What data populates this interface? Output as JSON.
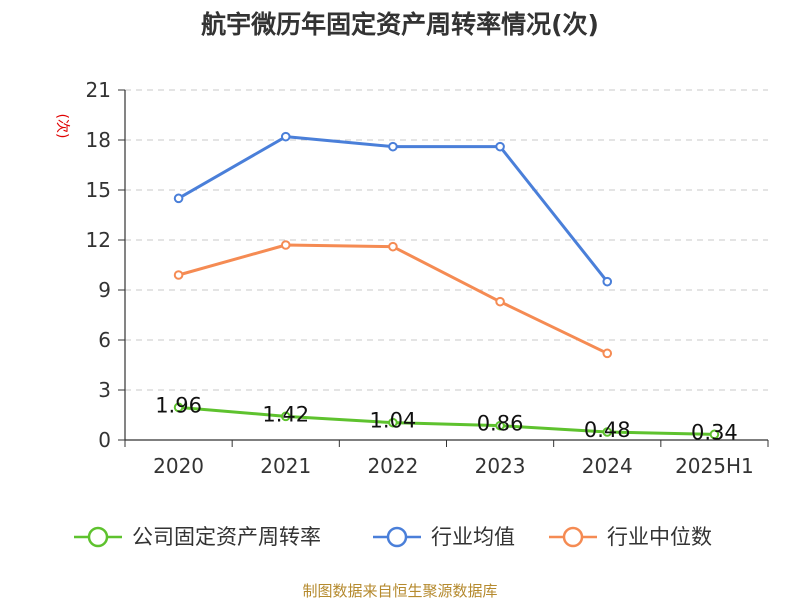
{
  "chart_data": {
    "type": "line",
    "title": "航宇微历年固定资产周转率情况(次)",
    "ylabel": "(次)",
    "categories": [
      "2020",
      "2021",
      "2022",
      "2023",
      "2024",
      "2025H1"
    ],
    "ylim": [
      0,
      21
    ],
    "yticks": [
      0,
      3,
      6,
      9,
      12,
      15,
      18,
      21
    ],
    "grid": true,
    "legend_position": "bottom",
    "series": [
      {
        "name": "公司固定资产周转率",
        "color": "#5ec22e",
        "values": [
          1.96,
          1.42,
          1.04,
          0.86,
          0.48,
          0.34
        ],
        "labels": [
          "1.96",
          "1.42",
          "1.04",
          "0.86",
          "0.48",
          "0.34"
        ]
      },
      {
        "name": "行业均值",
        "color": "#4a7fd9",
        "values": [
          14.5,
          18.2,
          17.6,
          17.6,
          9.5,
          null
        ]
      },
      {
        "name": "行业中位数",
        "color": "#f58b53",
        "values": [
          9.9,
          11.7,
          11.6,
          8.3,
          5.2,
          null
        ]
      }
    ]
  },
  "footer": {
    "source": "制图数据来自恒生聚源数据库"
  }
}
